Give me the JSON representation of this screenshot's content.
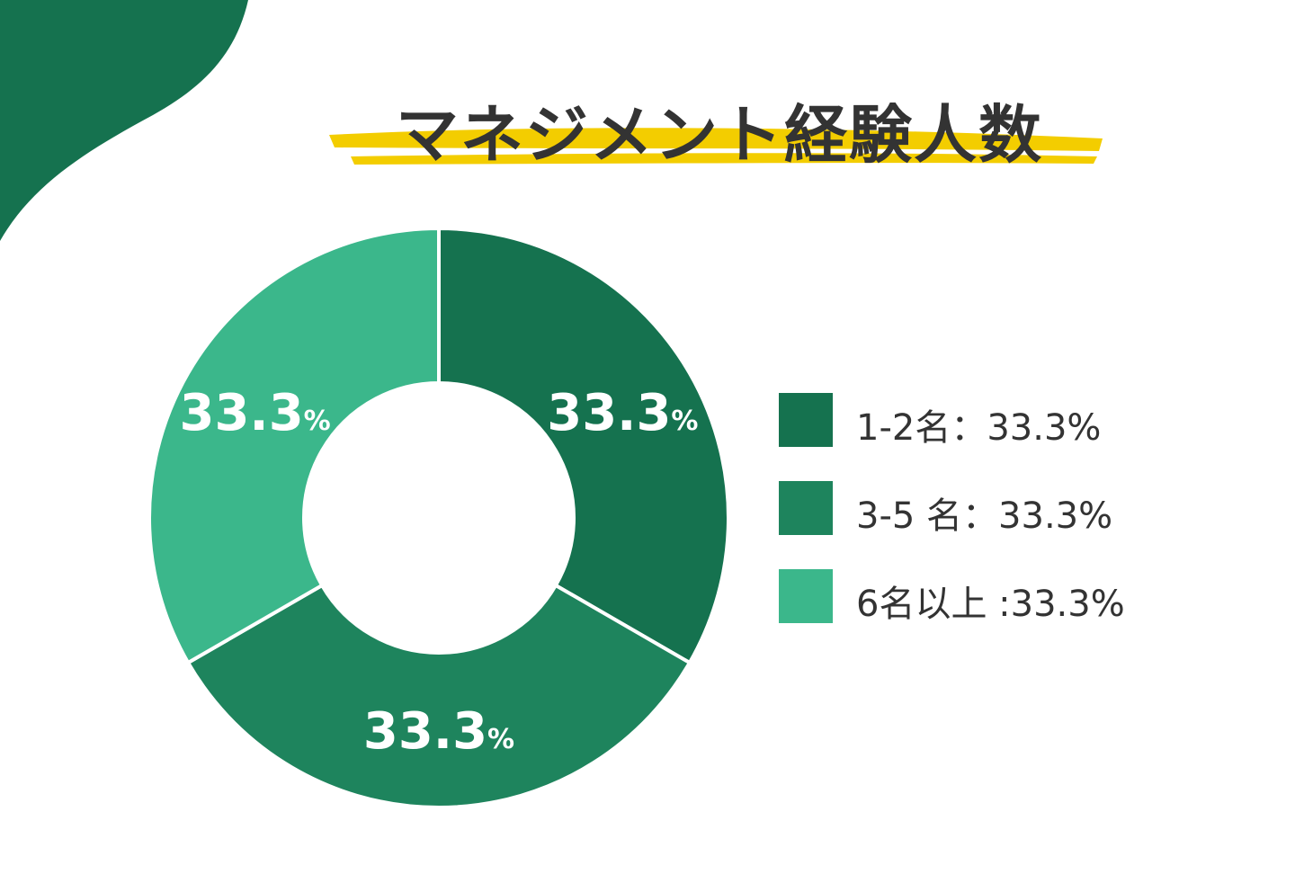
{
  "title": "マネジメント経験人数",
  "colors": {
    "background": "#ffffff",
    "corner": "#15724f",
    "highlight": "#f3cd00",
    "title_text": "#333333",
    "legend_text": "#333333"
  },
  "chart_data": {
    "type": "pie",
    "title": "マネジメント経験人数",
    "donut": true,
    "start_angle_deg": 0,
    "legend_position": "right",
    "slices": [
      {
        "category": "1-2名",
        "value": 33.3,
        "label_num": "33.3",
        "label_unit": "%",
        "legend": "1-2名：33.3%",
        "color": "#15724f"
      },
      {
        "category": "3-5 名",
        "value": 33.3,
        "label_num": "33.3",
        "label_unit": "%",
        "legend": "3-5 名：33.3%",
        "color": "#1e845d"
      },
      {
        "category": "6名以上",
        "value": 33.3,
        "label_num": "33.3",
        "label_unit": "%",
        "legend": "6名以上 :33.3%",
        "color": "#3bb78b"
      }
    ]
  }
}
